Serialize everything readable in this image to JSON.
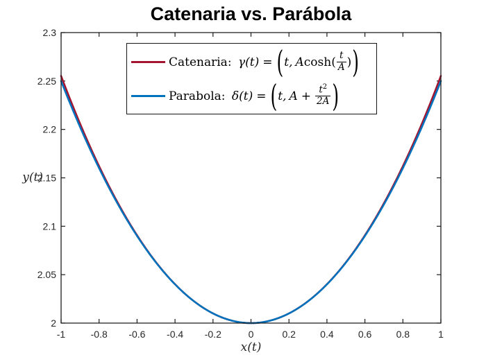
{
  "title": "Catenaria vs. Parábola",
  "axes": {
    "xlabel": "x(t)",
    "ylabel": "y(t)",
    "xlim": [
      -1,
      1
    ],
    "ylim": [
      2,
      2.3
    ],
    "xtick_values": [
      -1,
      -0.8,
      -0.6,
      -0.4,
      -0.2,
      0,
      0.2,
      0.4,
      0.6,
      0.8,
      1
    ],
    "xtick_labels": [
      "-1",
      "-0.8",
      "-0.6",
      "-0.4",
      "-0.2",
      "0",
      "0.2",
      "0.4",
      "0.6",
      "0.8",
      "1"
    ],
    "ytick_values": [
      2,
      2.05,
      2.1,
      2.15,
      2.2,
      2.25,
      2.3
    ],
    "ytick_labels": [
      "2",
      "2.05",
      "2.1",
      "2.15",
      "2.2",
      "2.25",
      "2.3"
    ]
  },
  "legend": {
    "items": [
      {
        "series": "catenaria",
        "color": "#A2142F",
        "prefix": "Catenaria: ",
        "func": "γ(t)",
        "eq": "=",
        "open": "(",
        "arg": "t,",
        "coef": "A",
        "fn_open": "cosh(",
        "frac_num": "t",
        "frac_den": "A",
        "fn_close": ")",
        "close": ")"
      },
      {
        "series": "parabola",
        "color": "#0072BD",
        "prefix": "Parabola: ",
        "func": "δ(t)",
        "eq": "=",
        "open": "(",
        "arg": "t,",
        "coef": "A",
        "plus": "+",
        "frac_num_base": "t",
        "frac_num_sup": "2",
        "frac_den": "2A",
        "close": ")"
      }
    ]
  },
  "colors": {
    "background": "#ffffff",
    "axis": "#1a1a1a",
    "tick_label": "#262626",
    "title": "#000000",
    "catenaria": "#A2142F",
    "parabola": "#0072BD"
  },
  "chart_data": {
    "type": "line",
    "title": "Catenaria vs. Parábola",
    "xlabel": "x(t)",
    "ylabel": "y(t)",
    "xlim": [
      -1,
      1
    ],
    "ylim": [
      2,
      2.3
    ],
    "grid": false,
    "legend_position": "inside top, left-of-center",
    "A": 2,
    "x_step_sampled": 0.1,
    "series": [
      {
        "name": "Catenaria: γ(t) = (t, A·cosh(t/A))",
        "kind": "catenary",
        "color": "#A2142F",
        "linewidth": 2.6,
        "x": [
          -1,
          -0.9,
          -0.8,
          -0.7,
          -0.6,
          -0.5,
          -0.4,
          -0.3,
          -0.2,
          -0.1,
          0,
          0.1,
          0.2,
          0.3,
          0.4,
          0.5,
          0.6,
          0.7,
          0.8,
          0.9,
          1
        ],
        "y": [
          2.2553,
          2.2059,
          2.1621,
          2.1238,
          2.0907,
          2.0628,
          2.0401,
          2.0225,
          2.01,
          2.0025,
          2,
          2.0025,
          2.01,
          2.0225,
          2.0401,
          2.0628,
          2.0907,
          2.1238,
          2.1621,
          2.2059,
          2.2553
        ]
      },
      {
        "name": "Parabola: δ(t) = (t, A + t²/(2A))",
        "kind": "parabola",
        "color": "#0072BD",
        "linewidth": 2.6,
        "x": [
          -1,
          -0.9,
          -0.8,
          -0.7,
          -0.6,
          -0.5,
          -0.4,
          -0.3,
          -0.2,
          -0.1,
          0,
          0.1,
          0.2,
          0.3,
          0.4,
          0.5,
          0.6,
          0.7,
          0.8,
          0.9,
          1
        ],
        "y": [
          2.25,
          2.2025,
          2.16,
          2.1225,
          2.09,
          2.0625,
          2.04,
          2.0225,
          2.01,
          2.0025,
          2,
          2.0025,
          2.01,
          2.0225,
          2.04,
          2.0625,
          2.09,
          2.1225,
          2.16,
          2.2025,
          2.25
        ]
      }
    ]
  }
}
